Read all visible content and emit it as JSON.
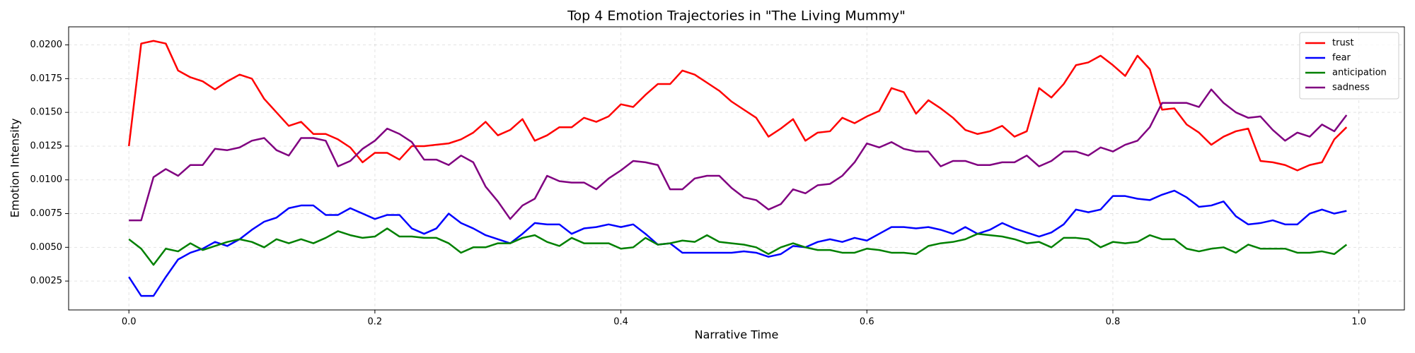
{
  "chart_data": {
    "type": "line",
    "title": "Top 4 Emotion Trajectories in \"The Living Mummy\"",
    "xlabel": "Narrative Time",
    "ylabel": "Emotion Intensity",
    "x": [
      0,
      0.01,
      0.02,
      0.03,
      0.04,
      0.05,
      0.06,
      0.07,
      0.08,
      0.09,
      0.1,
      0.11,
      0.12,
      0.13,
      0.14,
      0.15,
      0.16,
      0.17,
      0.18,
      0.19,
      0.2,
      0.21,
      0.22,
      0.23,
      0.24,
      0.25,
      0.26,
      0.27,
      0.28,
      0.29,
      0.3,
      0.31,
      0.32,
      0.33,
      0.34,
      0.35,
      0.36,
      0.37,
      0.38,
      0.39,
      0.4,
      0.41,
      0.42,
      0.43,
      0.44,
      0.45,
      0.46,
      0.47,
      0.48,
      0.49,
      0.5,
      0.51,
      0.52,
      0.53,
      0.54,
      0.55,
      0.56,
      0.57,
      0.58,
      0.59,
      0.6,
      0.61,
      0.62,
      0.63,
      0.64,
      0.65,
      0.66,
      0.67,
      0.68,
      0.69,
      0.7,
      0.71,
      0.72,
      0.73,
      0.74,
      0.75,
      0.76,
      0.77,
      0.78,
      0.79,
      0.8,
      0.81,
      0.82,
      0.83,
      0.84,
      0.85,
      0.86,
      0.87,
      0.88,
      0.89,
      0.9,
      0.91,
      0.92,
      0.93,
      0.94,
      0.95,
      0.96,
      0.97,
      0.98,
      0.99
    ],
    "series": [
      {
        "name": "trust",
        "color": "#ff0000",
        "values": [
          0.0125,
          0.0201,
          0.0203,
          0.0201,
          0.0181,
          0.0176,
          0.0173,
          0.0167,
          0.0173,
          0.0178,
          0.0175,
          0.016,
          0.015,
          0.014,
          0.0143,
          0.0134,
          0.0134,
          0.013,
          0.0124,
          0.0113,
          0.012,
          0.012,
          0.0115,
          0.0125,
          0.0125,
          0.0126,
          0.0127,
          0.013,
          0.0135,
          0.0143,
          0.0133,
          0.0137,
          0.0145,
          0.0129,
          0.0133,
          0.0139,
          0.0139,
          0.0146,
          0.0143,
          0.0147,
          0.0156,
          0.0154,
          0.0163,
          0.0171,
          0.0171,
          0.0181,
          0.0178,
          0.0172,
          0.0166,
          0.0158,
          0.0152,
          0.0146,
          0.0132,
          0.0138,
          0.0145,
          0.0129,
          0.0135,
          0.0136,
          0.0146,
          0.0142,
          0.0147,
          0.0151,
          0.0168,
          0.0165,
          0.0149,
          0.0159,
          0.0153,
          0.0146,
          0.0137,
          0.0134,
          0.0136,
          0.014,
          0.0132,
          0.0136,
          0.0168,
          0.0161,
          0.0171,
          0.0185,
          0.0187,
          0.0192,
          0.0185,
          0.0177,
          0.0192,
          0.0182,
          0.0152,
          0.0153,
          0.0141,
          0.0135,
          0.0126,
          0.0132,
          0.0136,
          0.0138,
          0.0114,
          0.0113,
          0.0111,
          0.0107,
          0.0111,
          0.0113,
          0.013,
          0.0139
        ]
      },
      {
        "name": "fear",
        "color": "#0000ff",
        "values": [
          0.0028,
          0.0014,
          0.0014,
          0.0028,
          0.0041,
          0.0046,
          0.0049,
          0.0054,
          0.0051,
          0.0056,
          0.0063,
          0.0069,
          0.0072,
          0.0079,
          0.0081,
          0.0081,
          0.0074,
          0.0074,
          0.0079,
          0.0075,
          0.0071,
          0.0074,
          0.0074,
          0.0064,
          0.006,
          0.0064,
          0.0075,
          0.0068,
          0.0064,
          0.0059,
          0.0056,
          0.0053,
          0.006,
          0.0068,
          0.0067,
          0.0067,
          0.006,
          0.0064,
          0.0065,
          0.0067,
          0.0065,
          0.0067,
          0.006,
          0.0052,
          0.0053,
          0.0046,
          0.0046,
          0.0046,
          0.0046,
          0.0046,
          0.0047,
          0.0046,
          0.0043,
          0.0045,
          0.0051,
          0.005,
          0.0054,
          0.0056,
          0.0054,
          0.0057,
          0.0055,
          0.006,
          0.0065,
          0.0065,
          0.0064,
          0.0065,
          0.0063,
          0.006,
          0.0065,
          0.006,
          0.0063,
          0.0068,
          0.0064,
          0.0061,
          0.0058,
          0.0061,
          0.0067,
          0.0078,
          0.0076,
          0.0078,
          0.0088,
          0.0088,
          0.0086,
          0.0085,
          0.0089,
          0.0092,
          0.0087,
          0.008,
          0.0081,
          0.0084,
          0.0073,
          0.0067,
          0.0068,
          0.007,
          0.0067,
          0.0067,
          0.0075,
          0.0078,
          0.0075,
          0.0077
        ]
      },
      {
        "name": "anticipation",
        "color": "#008000",
        "values": [
          0.0056,
          0.0049,
          0.0037,
          0.0049,
          0.0047,
          0.0053,
          0.0048,
          0.0051,
          0.0054,
          0.0056,
          0.0054,
          0.005,
          0.0056,
          0.0053,
          0.0056,
          0.0053,
          0.0057,
          0.0062,
          0.0059,
          0.0057,
          0.0058,
          0.0064,
          0.0058,
          0.0058,
          0.0057,
          0.0057,
          0.0053,
          0.0046,
          0.005,
          0.005,
          0.0053,
          0.0053,
          0.0057,
          0.0059,
          0.0054,
          0.0051,
          0.0057,
          0.0053,
          0.0053,
          0.0053,
          0.0049,
          0.005,
          0.0057,
          0.0052,
          0.0053,
          0.0055,
          0.0054,
          0.0059,
          0.0054,
          0.0053,
          0.0052,
          0.005,
          0.0045,
          0.005,
          0.0053,
          0.005,
          0.0048,
          0.0048,
          0.0046,
          0.0046,
          0.0049,
          0.0048,
          0.0046,
          0.0046,
          0.0045,
          0.0051,
          0.0053,
          0.0054,
          0.0056,
          0.006,
          0.0059,
          0.0058,
          0.0056,
          0.0053,
          0.0054,
          0.005,
          0.0057,
          0.0057,
          0.0056,
          0.005,
          0.0054,
          0.0053,
          0.0054,
          0.0059,
          0.0056,
          0.0056,
          0.0049,
          0.0047,
          0.0049,
          0.005,
          0.0046,
          0.0052,
          0.0049,
          0.0049,
          0.0049,
          0.0046,
          0.0046,
          0.0047,
          0.0045,
          0.0052
        ]
      },
      {
        "name": "sadness",
        "color": "#800080",
        "values": [
          0.007,
          0.007,
          0.0102,
          0.0108,
          0.0103,
          0.0111,
          0.0111,
          0.0123,
          0.0122,
          0.0124,
          0.0129,
          0.0131,
          0.0122,
          0.0118,
          0.0131,
          0.0131,
          0.0129,
          0.011,
          0.0114,
          0.0123,
          0.0129,
          0.0138,
          0.0134,
          0.0128,
          0.0115,
          0.0115,
          0.0111,
          0.0118,
          0.0113,
          0.0095,
          0.0084,
          0.0071,
          0.0081,
          0.0086,
          0.0103,
          0.0099,
          0.0098,
          0.0098,
          0.0093,
          0.0101,
          0.0107,
          0.0114,
          0.0113,
          0.0111,
          0.0093,
          0.0093,
          0.0101,
          0.0103,
          0.0103,
          0.0094,
          0.0087,
          0.0085,
          0.0078,
          0.0082,
          0.0093,
          0.009,
          0.0096,
          0.0097,
          0.0103,
          0.0113,
          0.0127,
          0.0124,
          0.0128,
          0.0123,
          0.0121,
          0.0121,
          0.011,
          0.0114,
          0.0114,
          0.0111,
          0.0111,
          0.0113,
          0.0113,
          0.0118,
          0.011,
          0.0114,
          0.0121,
          0.0121,
          0.0118,
          0.0124,
          0.0121,
          0.0126,
          0.0129,
          0.0139,
          0.0157,
          0.0157,
          0.0157,
          0.0154,
          0.0167,
          0.0157,
          0.015,
          0.0146,
          0.0147,
          0.0137,
          0.0129,
          0.0135,
          0.0132,
          0.0141,
          0.0136,
          0.0148
        ]
      }
    ],
    "xlim": [
      -0.049,
      1.037
    ],
    "ylim": [
      0.00036,
      0.02134
    ],
    "xticks": [
      {
        "value": 0,
        "label": "0.0"
      },
      0.2,
      0.4,
      0.6,
      0.8,
      {
        "value": 1,
        "label": "1.0"
      }
    ],
    "yticks": [
      0.0025,
      {
        "value": 0.005,
        "label": "0.0050"
      },
      0.0075,
      {
        "value": 0.01,
        "label": "0.0100"
      },
      0.0125,
      {
        "value": 0.015,
        "label": "0.0150"
      },
      0.0175,
      {
        "value": 0.02,
        "label": "0.0200"
      }
    ],
    "grid": true,
    "legend": "upper right"
  }
}
